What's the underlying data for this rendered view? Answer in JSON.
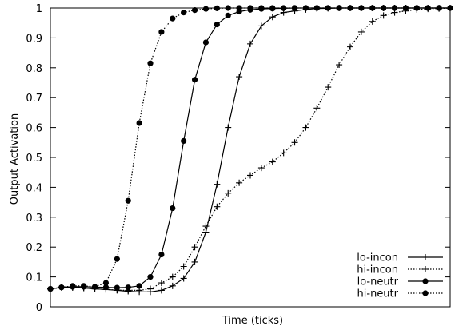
{
  "chart_data": {
    "type": "line",
    "title": "",
    "xlabel": "Time (ticks)",
    "ylabel": "Output Activation",
    "xlim": [
      0,
      36
    ],
    "ylim": [
      0,
      1
    ],
    "y_ticks": [
      "0",
      "0.1",
      "0.2",
      "0.3",
      "0.4",
      "0.5",
      "0.6",
      "0.7",
      "0.8",
      "0.9",
      "1"
    ],
    "x_tick_labels_shown": false,
    "grid": false,
    "legend_position": "bottom-right",
    "series": [
      {
        "name": "lo-incon",
        "line": "solid",
        "marker": "plus",
        "x": [
          0,
          1,
          2,
          3,
          4,
          5,
          6,
          7,
          8,
          9,
          10,
          11,
          12,
          13,
          14,
          15,
          16,
          17,
          18,
          19,
          20,
          21,
          22,
          23,
          24,
          25,
          26,
          27,
          28,
          29,
          30,
          31,
          32,
          33,
          34,
          35,
          36
        ],
        "values": [
          0.06,
          0.065,
          0.065,
          0.063,
          0.06,
          0.058,
          0.055,
          0.052,
          0.05,
          0.05,
          0.055,
          0.07,
          0.095,
          0.15,
          0.25,
          0.41,
          0.6,
          0.77,
          0.88,
          0.94,
          0.97,
          0.985,
          0.99,
          0.995,
          0.998,
          0.999,
          1,
          1,
          1,
          1,
          1,
          1,
          1,
          1,
          1,
          1,
          1
        ]
      },
      {
        "name": "hi-incon",
        "line": "dotted",
        "marker": "plus",
        "x": [
          0,
          1,
          2,
          3,
          4,
          5,
          6,
          7,
          8,
          9,
          10,
          11,
          12,
          13,
          14,
          15,
          16,
          17,
          18,
          19,
          20,
          21,
          22,
          23,
          24,
          25,
          26,
          27,
          28,
          29,
          30,
          31,
          32,
          33,
          34,
          35,
          36
        ],
        "values": [
          0.06,
          0.065,
          0.065,
          0.063,
          0.06,
          0.058,
          0.056,
          0.055,
          0.055,
          0.06,
          0.08,
          0.1,
          0.135,
          0.2,
          0.27,
          0.335,
          0.38,
          0.415,
          0.44,
          0.465,
          0.485,
          0.515,
          0.55,
          0.6,
          0.665,
          0.735,
          0.81,
          0.87,
          0.92,
          0.955,
          0.975,
          0.985,
          0.99,
          0.995,
          0.997,
          0.998,
          1
        ]
      },
      {
        "name": "lo-neutr",
        "line": "solid",
        "marker": "circle",
        "x": [
          0,
          1,
          2,
          3,
          4,
          5,
          6,
          7,
          8,
          9,
          10,
          11,
          12,
          13,
          14,
          15,
          16,
          17,
          18,
          19,
          20,
          21,
          22,
          23,
          24,
          25,
          26,
          27,
          28,
          29,
          30,
          31,
          32,
          33,
          34,
          35,
          36
        ],
        "values": [
          0.06,
          0.065,
          0.067,
          0.067,
          0.066,
          0.065,
          0.064,
          0.065,
          0.07,
          0.1,
          0.175,
          0.33,
          0.555,
          0.76,
          0.885,
          0.945,
          0.975,
          0.988,
          0.994,
          0.997,
          0.998,
          0.999,
          1,
          1,
          1,
          1,
          1,
          1,
          1,
          1,
          1,
          1,
          1,
          1,
          1,
          1,
          1
        ]
      },
      {
        "name": "hi-neutr",
        "line": "dotted",
        "marker": "circle",
        "x": [
          0,
          1,
          2,
          3,
          4,
          5,
          6,
          7,
          8,
          9,
          10,
          11,
          12,
          13,
          14,
          15,
          16,
          17,
          18,
          19,
          20,
          21,
          22,
          23,
          24,
          25,
          26,
          27,
          28,
          29,
          30,
          31,
          32,
          33,
          34,
          35,
          36
        ],
        "values": [
          0.06,
          0.065,
          0.07,
          0.07,
          0.067,
          0.08,
          0.16,
          0.355,
          0.615,
          0.815,
          0.92,
          0.965,
          0.985,
          0.993,
          0.997,
          0.999,
          1,
          1,
          1,
          1,
          1,
          1,
          1,
          1,
          1,
          1,
          1,
          1,
          1,
          1,
          1,
          1,
          1,
          1,
          1,
          1,
          1
        ]
      }
    ]
  }
}
